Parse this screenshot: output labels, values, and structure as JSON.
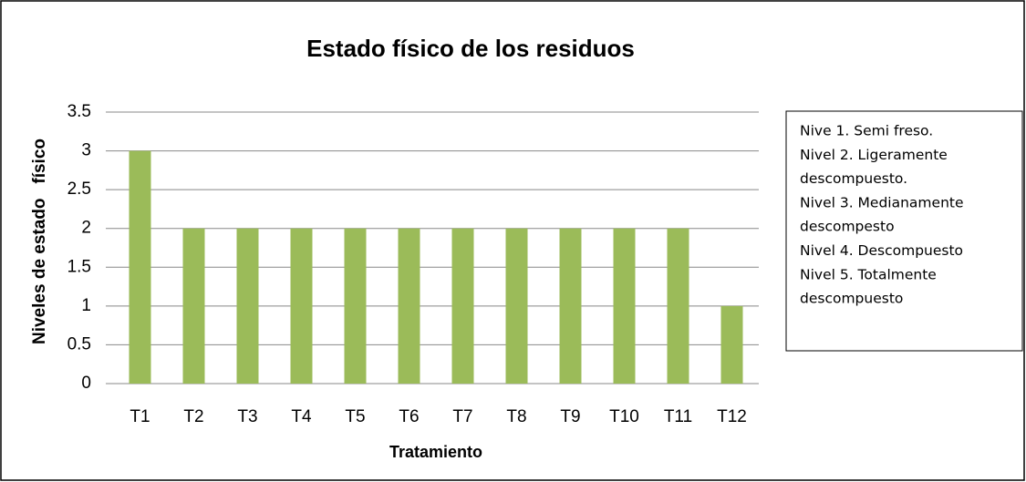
{
  "chart_data": {
    "type": "bar",
    "title": "Estado físico de los residuos",
    "x_label": "Tratamiento",
    "y_label": "Niveles de estado   físico",
    "categories": [
      "T1",
      "T2",
      "T3",
      "T4",
      "T5",
      "T6",
      "T7",
      "T8",
      "T9",
      "T10",
      "T11",
      "T12"
    ],
    "values": [
      3,
      2,
      2,
      2,
      2,
      2,
      2,
      2,
      2,
      2,
      2,
      1
    ],
    "color": "#9bbb59",
    "ylim": [
      0,
      3.5
    ],
    "yticks": [
      0,
      0.5,
      1,
      1.5,
      2,
      2.5,
      3,
      3.5
    ],
    "grid": true,
    "annotation_lines": [
      "Nive 1. Semi freso.",
      "Nivel 2. Ligeramente",
      "descompuesto.",
      "Nivel 3. Medianamente",
      "descompesto",
      "Nivel 4. Descompuesto",
      "Nivel 5. Totalmente",
      "descompuesto"
    ]
  }
}
